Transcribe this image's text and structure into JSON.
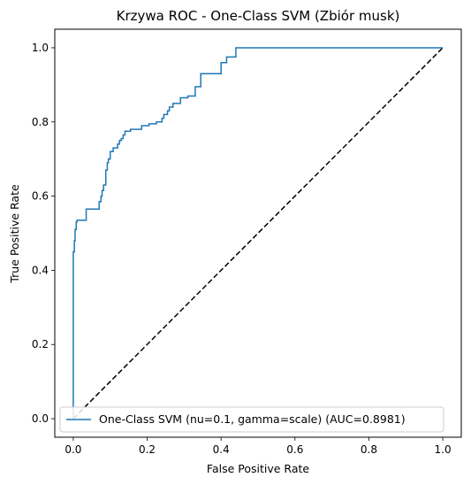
{
  "chart_data": {
    "type": "line",
    "title": "Krzywa ROC - One-Class SVM (Zbiór musk)",
    "xlabel": "False Positive Rate",
    "ylabel": "True Positive Rate",
    "xlim": [
      -0.05,
      1.05
    ],
    "ylim": [
      -0.05,
      1.05
    ],
    "x_ticks": [
      "0.0",
      "0.2",
      "0.4",
      "0.6",
      "0.8",
      "1.0"
    ],
    "y_ticks": [
      "0.0",
      "0.2",
      "0.4",
      "0.6",
      "0.8",
      "1.0"
    ],
    "grid": false,
    "legend_position": "lower-right",
    "colors": {
      "roc": "#1f77b4",
      "diagonal": "#000000"
    },
    "series": [
      {
        "name": "One-Class SVM (nu=0.1, gamma=scale) (AUC=0.8981)",
        "style": "solid",
        "x": [
          0.0,
          0.0,
          0.003,
          0.003,
          0.005,
          0.005,
          0.008,
          0.008,
          0.01,
          0.01,
          0.035,
          0.035,
          0.07,
          0.07,
          0.075,
          0.075,
          0.078,
          0.078,
          0.082,
          0.082,
          0.088,
          0.088,
          0.092,
          0.092,
          0.095,
          0.095,
          0.1,
          0.1,
          0.108,
          0.108,
          0.12,
          0.12,
          0.125,
          0.125,
          0.13,
          0.13,
          0.135,
          0.135,
          0.14,
          0.14,
          0.145,
          0.145,
          0.155,
          0.155,
          0.17,
          0.17,
          0.185,
          0.185,
          0.205,
          0.205,
          0.225,
          0.225,
          0.24,
          0.24,
          0.245,
          0.245,
          0.255,
          0.255,
          0.26,
          0.26,
          0.27,
          0.27,
          0.29,
          0.29,
          0.31,
          0.31,
          0.33,
          0.33,
          0.345,
          0.345,
          0.37,
          0.37,
          0.4,
          0.4,
          0.415,
          0.415,
          0.44,
          0.44,
          0.46,
          0.46,
          0.48,
          0.48,
          0.5,
          0.5,
          0.52,
          0.52,
          0.54,
          0.54,
          0.56,
          0.56,
          0.6,
          0.6,
          0.65,
          0.65,
          0.7,
          0.7,
          0.75,
          0.75,
          0.8,
          0.8,
          1.0,
          1.0
        ],
        "y": [
          0.0,
          0.45,
          0.45,
          0.48,
          0.48,
          0.51,
          0.51,
          0.53,
          0.53,
          0.535,
          0.535,
          0.565,
          0.565,
          0.585,
          0.585,
          0.6,
          0.6,
          0.615,
          0.615,
          0.63,
          0.63,
          0.67,
          0.67,
          0.69,
          0.69,
          0.7,
          0.7,
          0.72,
          0.72,
          0.73,
          0.73,
          0.74,
          0.74,
          0.75,
          0.75,
          0.755,
          0.755,
          0.765,
          0.765,
          0.775,
          0.775,
          0.775,
          0.775,
          0.78,
          0.78,
          0.78,
          0.78,
          0.79,
          0.79,
          0.795,
          0.795,
          0.8,
          0.8,
          0.81,
          0.81,
          0.82,
          0.82,
          0.83,
          0.83,
          0.84,
          0.84,
          0.85,
          0.85,
          0.865,
          0.865,
          0.87,
          0.87,
          0.895,
          0.895,
          0.93,
          0.93,
          0.93,
          0.93,
          0.96,
          0.96,
          0.975,
          0.975,
          1.0,
          1.0,
          1.0,
          1.0,
          1.0,
          1.0,
          1.0,
          1.0,
          1.0,
          1.0,
          1.0,
          1.0,
          1.0,
          1.0,
          1.0,
          1.0,
          1.0,
          1.0,
          1.0,
          1.0,
          1.0,
          1.0,
          1.0,
          1.0,
          1.0
        ]
      },
      {
        "name": "",
        "style": "dashed",
        "x": [
          0.0,
          1.0
        ],
        "y": [
          0.0,
          1.0
        ]
      }
    ]
  }
}
